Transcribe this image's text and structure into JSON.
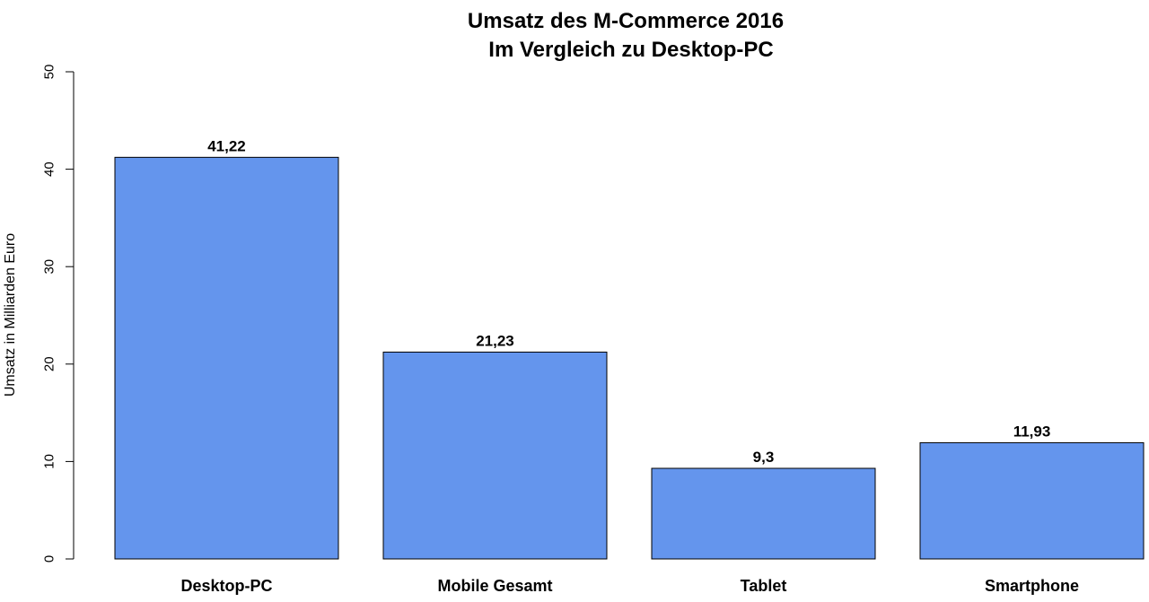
{
  "chart_data": {
    "type": "bar",
    "title": "Umsatz des M-Commerce 2016",
    "subtitle": "Im Vergleich zu Desktop-PC",
    "xlabel": "",
    "ylabel": "Umsatz in Milliarden Euro",
    "ylim": [
      0,
      50
    ],
    "yticks": [
      0,
      10,
      20,
      30,
      40,
      50
    ],
    "categories": [
      "Desktop-PC",
      "Mobile Gesamt",
      "Tablet",
      "Smartphone"
    ],
    "values": [
      41.22,
      21.23,
      9.3,
      11.93
    ],
    "value_labels": [
      "41,22",
      "21,23",
      "9,3",
      "11,93"
    ],
    "bar_color": "#6495ED",
    "bar_border_color": "#000000",
    "grid": false,
    "legend": "none"
  }
}
